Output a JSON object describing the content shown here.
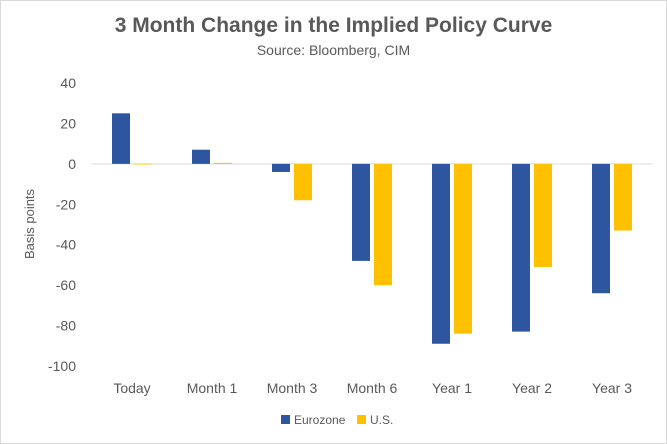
{
  "chart_data": {
    "type": "bar",
    "title": "3 Month Change in the Implied Policy Curve",
    "subtitle": "Source: Bloomberg, CIM",
    "xlabel": "",
    "ylabel": "Basis points",
    "categories": [
      "Today",
      "Month 1",
      "Month 3",
      "Month 6",
      "Year 1",
      "Year 2",
      "Year 3"
    ],
    "series": [
      {
        "name": "Eurozone",
        "color": "#2e55a0",
        "values": [
          25,
          7,
          -4,
          -48,
          -89,
          -83,
          -64
        ]
      },
      {
        "name": "U.S.",
        "color": "#ffc000",
        "values": [
          0,
          0.5,
          -18,
          -60,
          -84,
          -51,
          -33
        ]
      }
    ],
    "ylim": [
      -100,
      40
    ],
    "yticks": [
      40,
      20,
      0,
      -20,
      -40,
      -60,
      -80,
      -100
    ],
    "grid": false,
    "legend": "bottom-center"
  }
}
